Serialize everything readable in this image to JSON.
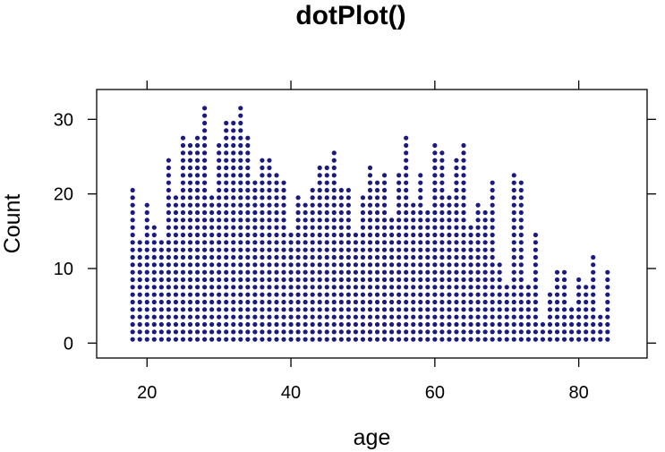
{
  "chart_data": {
    "type": "dot",
    "title": "dotPlot()",
    "xlabel": "age",
    "ylabel": "Count",
    "xlim": [
      13,
      89.5
    ],
    "ylim": [
      -2,
      34
    ],
    "x_ticks": [
      20,
      40,
      60,
      80
    ],
    "y_ticks": [
      0,
      10,
      20,
      30
    ],
    "dot_color": "#1a1a80",
    "grid": false,
    "legend": "none",
    "x": [
      18,
      19,
      20,
      21,
      22,
      23,
      24,
      25,
      26,
      27,
      28,
      29,
      30,
      31,
      32,
      33,
      34,
      35,
      36,
      37,
      38,
      39,
      40,
      41,
      42,
      43,
      44,
      45,
      46,
      47,
      48,
      49,
      50,
      51,
      52,
      53,
      54,
      55,
      56,
      57,
      58,
      59,
      60,
      61,
      62,
      63,
      64,
      65,
      66,
      67,
      68,
      69,
      70,
      71,
      72,
      73,
      74,
      75,
      76,
      77,
      78,
      79,
      80,
      81,
      82,
      83,
      84
    ],
    "counts": [
      21,
      14,
      19,
      16,
      14,
      25,
      20,
      28,
      27,
      28,
      32,
      20,
      27,
      30,
      30,
      32,
      28,
      22,
      25,
      25,
      23,
      22,
      15,
      20,
      19,
      21,
      24,
      24,
      26,
      21,
      21,
      15,
      20,
      24,
      22,
      23,
      17,
      23,
      28,
      19,
      23,
      18,
      27,
      26,
      20,
      25,
      27,
      16,
      19,
      18,
      22,
      11,
      8,
      23,
      22,
      8,
      15,
      3,
      7,
      10,
      10,
      5,
      9,
      8,
      12,
      4,
      10
    ]
  }
}
